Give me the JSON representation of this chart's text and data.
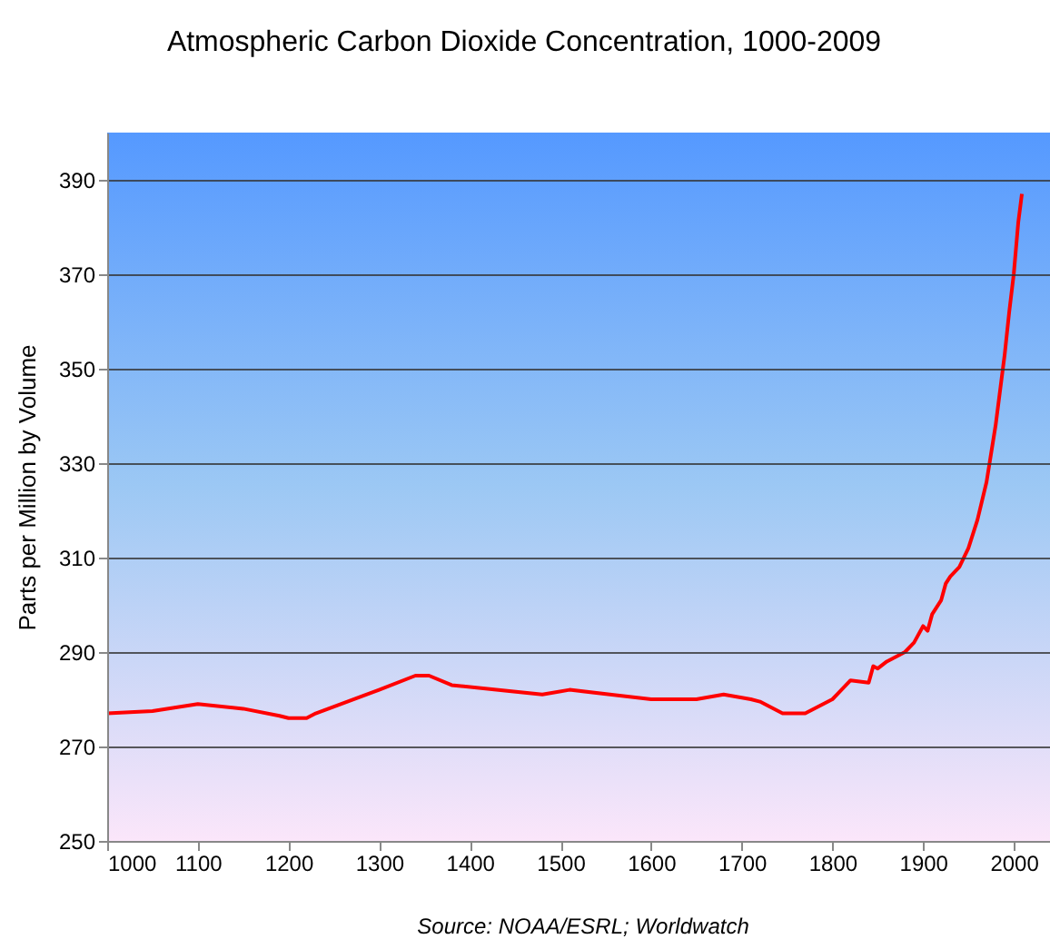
{
  "chart_data": {
    "type": "line",
    "title": "Atmospheric Carbon Dioxide Concentration, 1000-2009",
    "ylabel": "Parts per Million by Volume",
    "annotations": [
      "Source: NOAA/ESRL; Worldwatch"
    ],
    "x": [
      1000,
      1050,
      1100,
      1150,
      1190,
      1200,
      1220,
      1230,
      1300,
      1340,
      1355,
      1380,
      1480,
      1510,
      1600,
      1650,
      1680,
      1710,
      1720,
      1745,
      1770,
      1800,
      1820,
      1840,
      1845,
      1850,
      1860,
      1880,
      1890,
      1900,
      1905,
      1910,
      1920,
      1925,
      1930,
      1940,
      1950,
      1960,
      1970,
      1980,
      1990,
      1995,
      2000,
      2005,
      2007,
      2009
    ],
    "series": [
      {
        "color": "#ff0000",
        "values": [
          277,
          277.5,
          279,
          278,
          276.5,
          276,
          276,
          277,
          282,
          285,
          285,
          283,
          281,
          282,
          280,
          280,
          281,
          280,
          279.5,
          277,
          277,
          280,
          284,
          283.5,
          287,
          286.5,
          288,
          290,
          292,
          295.5,
          294.5,
          298,
          301,
          304.5,
          306,
          308,
          312,
          318,
          326,
          338,
          353,
          362,
          370,
          381,
          384,
          387
        ]
      }
    ],
    "xlim": [
      1000,
      2040
    ],
    "xticks": [
      1000,
      1100,
      1200,
      1300,
      1400,
      1500,
      1600,
      1700,
      1800,
      1900,
      2000
    ],
    "ylim": [
      250,
      400
    ],
    "yticks": [
      250,
      270,
      290,
      310,
      330,
      350,
      370,
      390
    ],
    "grid": "y",
    "marker": "none",
    "line_style": "solid"
  }
}
